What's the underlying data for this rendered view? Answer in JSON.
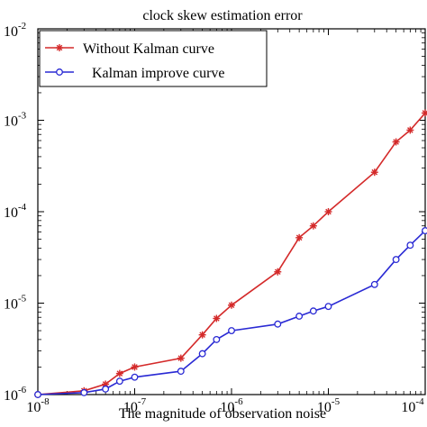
{
  "chart_data": {
    "type": "line",
    "title": "clock skew estimation error",
    "xlabel": "The magnitude of observation noise",
    "ylabel": "",
    "xscale": "log",
    "yscale": "log",
    "xlim": [
      1e-08,
      0.0001
    ],
    "ylim": [
      1e-06,
      0.01
    ],
    "x_ticks": [
      {
        "value": 1e-08,
        "base": "10",
        "exp": "-8"
      },
      {
        "value": 1e-07,
        "base": "10",
        "exp": "-7"
      },
      {
        "value": 1e-06,
        "base": "10",
        "exp": "-6"
      },
      {
        "value": 1e-05,
        "base": "10",
        "exp": "-5"
      },
      {
        "value": 0.0001,
        "base": "10",
        "exp": "-4"
      }
    ],
    "y_ticks": [
      {
        "value": 1e-06,
        "base": "10",
        "exp": "-6"
      },
      {
        "value": 1e-05,
        "base": "10",
        "exp": "-5"
      },
      {
        "value": 0.0001,
        "base": "10",
        "exp": "-4"
      },
      {
        "value": 0.001,
        "base": "10",
        "exp": "-3"
      },
      {
        "value": 0.01,
        "base": "10",
        "exp": "-2"
      }
    ],
    "grid": false,
    "legend_position": "top-left",
    "series": [
      {
        "name": "Without Kalman  curve",
        "color": "#d42a2a",
        "marker": "star",
        "points": [
          [
            1e-08,
            1e-06
          ],
          [
            3e-08,
            1.1e-06
          ],
          [
            5e-08,
            1.3e-06
          ],
          [
            7e-08,
            1.7e-06
          ],
          [
            1e-07,
            2e-06
          ],
          [
            3e-07,
            2.5e-06
          ],
          [
            5e-07,
            4.5e-06
          ],
          [
            7e-07,
            6.8e-06
          ],
          [
            1e-06,
            9.5e-06
          ],
          [
            3e-06,
            2.2e-05
          ],
          [
            5e-06,
            5.2e-05
          ],
          [
            7e-06,
            7e-05
          ],
          [
            1e-05,
            0.0001
          ],
          [
            3e-05,
            0.00027
          ],
          [
            5e-05,
            0.00058
          ],
          [
            7e-05,
            0.00078
          ],
          [
            0.0001,
            0.0012
          ]
        ]
      },
      {
        "name": "Kalman improve curve",
        "color": "#2a2ad4",
        "marker": "circle",
        "points": [
          [
            1e-08,
            1e-06
          ],
          [
            3e-08,
            1.05e-06
          ],
          [
            5e-08,
            1.15e-06
          ],
          [
            7e-08,
            1.4e-06
          ],
          [
            1e-07,
            1.55e-06
          ],
          [
            3e-07,
            1.8e-06
          ],
          [
            5e-07,
            2.8e-06
          ],
          [
            7e-07,
            4e-06
          ],
          [
            1e-06,
            5e-06
          ],
          [
            3e-06,
            5.9e-06
          ],
          [
            5e-06,
            7.2e-06
          ],
          [
            7e-06,
            8.2e-06
          ],
          [
            1e-05,
            9.2e-06
          ],
          [
            3e-05,
            1.6e-05
          ],
          [
            5e-05,
            3e-05
          ],
          [
            7e-05,
            4.3e-05
          ],
          [
            0.0001,
            6.2e-05
          ]
        ]
      }
    ]
  }
}
